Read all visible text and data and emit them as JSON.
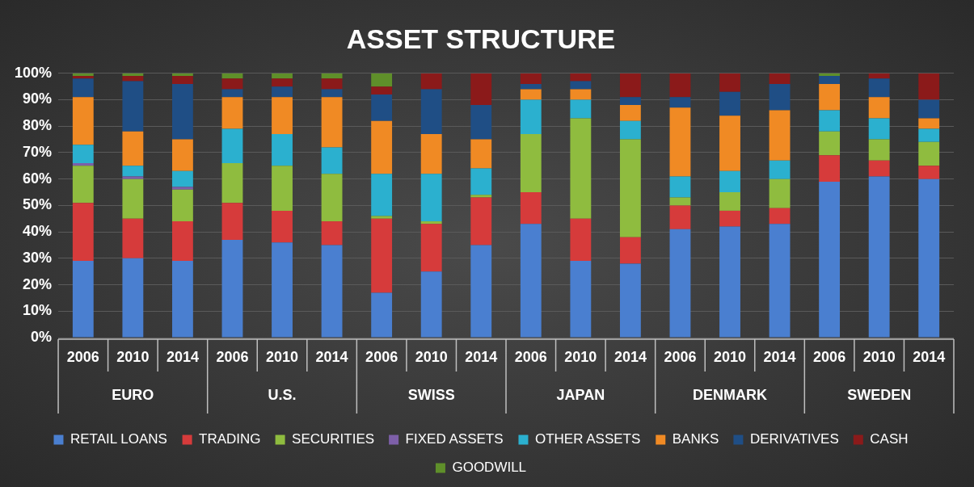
{
  "chart_data": {
    "type": "bar",
    "stacked": true,
    "title": "ASSET STRUCTURE",
    "categories": [
      "2006",
      "2010",
      "2014",
      "2006",
      "2010",
      "2014",
      "2006",
      "2010",
      "2014",
      "2006",
      "2010",
      "2014",
      "2006",
      "2010",
      "2014",
      "2006",
      "2010",
      "2014"
    ],
    "annotations": [
      "EURO",
      "U.S.",
      "SWISS",
      "JAPAN",
      "DENMARK",
      "SWEDEN"
    ],
    "series": [
      {
        "name": "RETAIL LOANS",
        "color": "#4a7fd0",
        "values": [
          29,
          30,
          29,
          37,
          36,
          35,
          17,
          25,
          35,
          43,
          29,
          28,
          41,
          42,
          43,
          59,
          61,
          60
        ]
      },
      {
        "name": "TRADING",
        "color": "#d63b3b",
        "values": [
          22,
          15,
          15,
          14,
          12,
          9,
          28,
          18,
          18,
          12,
          16,
          10,
          9,
          6,
          6,
          10,
          6,
          5
        ]
      },
      {
        "name": "SECURITIES",
        "color": "#8fbc3f",
        "values": [
          14,
          15,
          12,
          15,
          17,
          18,
          1,
          1,
          1,
          22,
          38,
          37,
          3,
          7,
          11,
          9,
          8,
          9
        ]
      },
      {
        "name": "FIXED ASSETS",
        "color": "#7d5fa8",
        "values": [
          1,
          1,
          1,
          0,
          0,
          0,
          0,
          0,
          0,
          0,
          0,
          0,
          0,
          0,
          0,
          0,
          0,
          0
        ]
      },
      {
        "name": "OTHER ASSETS",
        "color": "#2bb0cf",
        "values": [
          7,
          4,
          6,
          13,
          12,
          10,
          16,
          18,
          10,
          13,
          7,
          7,
          8,
          8,
          7,
          8,
          8,
          5
        ]
      },
      {
        "name": "BANKS",
        "color": "#f08a24",
        "values": [
          18,
          13,
          12,
          12,
          14,
          19,
          20,
          15,
          11,
          4,
          4,
          6,
          26,
          21,
          19,
          10,
          8,
          4
        ]
      },
      {
        "name": "DERIVATIVES",
        "color": "#1f4e85",
        "values": [
          7,
          19,
          21,
          3,
          4,
          3,
          10,
          17,
          13,
          2,
          3,
          3,
          4,
          9,
          10,
          3,
          7,
          7
        ]
      },
      {
        "name": "CASH",
        "color": "#8b1a1a",
        "values": [
          1,
          2,
          3,
          4,
          3,
          4,
          3,
          6,
          12,
          4,
          3,
          9,
          9,
          7,
          4,
          0,
          2,
          10
        ]
      },
      {
        "name": "GOODWILL",
        "color": "#5f8f2a",
        "values": [
          1,
          1,
          1,
          2,
          2,
          2,
          5,
          0,
          0,
          0,
          0,
          0,
          0,
          0,
          0,
          1,
          0,
          0
        ]
      }
    ],
    "ylim": [
      0,
      100
    ],
    "yticks": [
      {
        "value": 0,
        "label": "0%"
      },
      {
        "value": 10,
        "label": "10%"
      },
      {
        "value": 20,
        "label": "20%"
      },
      {
        "value": 30,
        "label": "30%"
      },
      {
        "value": 40,
        "label": "40%"
      },
      {
        "value": 50,
        "label": "50%"
      },
      {
        "value": 60,
        "label": "60%"
      },
      {
        "value": 70,
        "label": "70%"
      },
      {
        "value": 80,
        "label": "80%"
      },
      {
        "value": 90,
        "label": "90%"
      },
      {
        "value": 100,
        "label": "100%"
      }
    ],
    "grid": "y",
    "legend": "bottom"
  }
}
